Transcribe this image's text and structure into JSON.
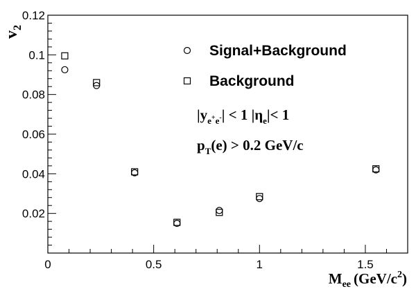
{
  "chart_data": {
    "type": "scatter",
    "xlabel_main": "M",
    "xlabel_sub": "ee",
    "xlabel_unit": "(GeV/c",
    "xlabel_sup": "2",
    "xlabel_close": ")",
    "ylabel_main": "v",
    "ylabel_sub": "2",
    "xlim": [
      0,
      1.7
    ],
    "ylim": [
      0,
      0.12
    ],
    "xticks": [
      0,
      0.5,
      1,
      1.5
    ],
    "xtick_labels": [
      "0",
      "0.5",
      "1",
      "1.5"
    ],
    "yticks": [
      0.02,
      0.04,
      0.06,
      0.08,
      0.1,
      0.12
    ],
    "ytick_labels": [
      "0.02",
      "0.04",
      "0.06",
      "0.08",
      "0.1",
      "0.12"
    ],
    "grid": false,
    "legend_position": "top-right",
    "series": [
      {
        "name": "Signal+Background",
        "marker": "open-circle",
        "color": "#000000",
        "points": [
          {
            "x": 0.08,
            "y": 0.0925
          },
          {
            "x": 0.23,
            "y": 0.0845
          },
          {
            "x": 0.41,
            "y": 0.0405
          },
          {
            "x": 0.61,
            "y": 0.015
          },
          {
            "x": 0.81,
            "y": 0.0215
          },
          {
            "x": 1.0,
            "y": 0.0275
          },
          {
            "x": 1.55,
            "y": 0.042
          }
        ]
      },
      {
        "name": "Background",
        "marker": "open-square",
        "color": "#000000",
        "points": [
          {
            "x": 0.08,
            "y": 0.0995
          },
          {
            "x": 0.23,
            "y": 0.086
          },
          {
            "x": 0.41,
            "y": 0.041
          },
          {
            "x": 0.61,
            "y": 0.0155
          },
          {
            "x": 0.81,
            "y": 0.0205
          },
          {
            "x": 1.0,
            "y": 0.0285
          },
          {
            "x": 1.55,
            "y": 0.0425
          }
        ]
      }
    ],
    "annotations": {
      "cut1": {
        "a": "|y",
        "b": "e",
        "c": "+",
        "d": "e",
        "e": "-",
        "f": "| < 1  |η",
        "g": "e",
        "h": "|< 1"
      },
      "cut2": {
        "a": "p",
        "b": "T",
        "c": "(e) > 0.2 GeV/c"
      }
    }
  }
}
